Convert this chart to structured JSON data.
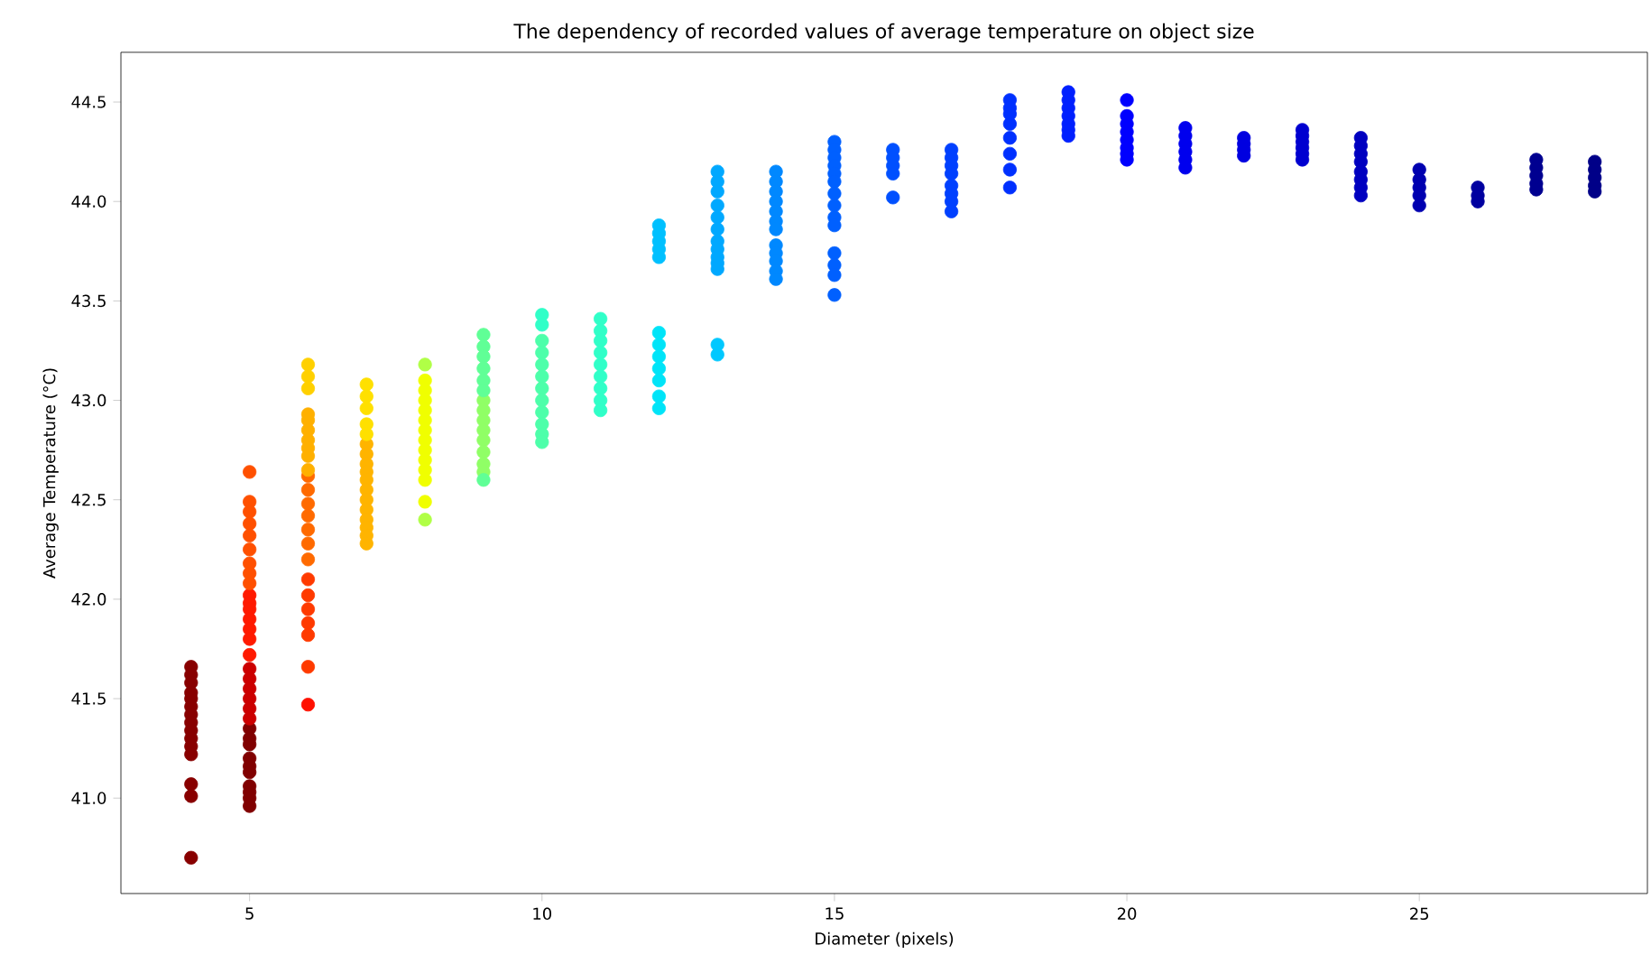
{
  "chart_data": {
    "type": "scatter",
    "title": "The dependency of recorded values of average temperature on object size",
    "xlabel": "Diameter (pixels)",
    "ylabel": "Average Temperature (°C)",
    "xlim": [
      2.8,
      28.9
    ],
    "ylim": [
      40.52,
      44.75
    ],
    "xticks": [
      5,
      10,
      15,
      20,
      25
    ],
    "yticks": [
      {
        "value": 41.0,
        "label": "41.0"
      },
      {
        "value": 41.5,
        "label": "41.5"
      },
      {
        "value": 42.0,
        "label": "42.0"
      },
      {
        "value": 42.5,
        "label": "42.5"
      },
      {
        "value": 43.0,
        "label": "43.0"
      },
      {
        "value": 43.5,
        "label": "43.5"
      },
      {
        "value": 44.0,
        "label": "44.0"
      },
      {
        "value": 44.5,
        "label": "44.5"
      }
    ],
    "grid": false,
    "marker": "circle",
    "series": [
      {
        "color": "#880000",
        "x": [
          4,
          4,
          4,
          4,
          4,
          4,
          4,
          4,
          4,
          4,
          4,
          4,
          4,
          4,
          4
        ],
        "values": [
          41.66,
          41.62,
          41.58,
          41.53,
          41.5,
          41.46,
          41.42,
          41.38,
          41.34,
          41.3,
          41.26,
          41.22,
          41.07,
          41.01,
          40.7
        ]
      },
      {
        "color": "#800000",
        "x": [
          5,
          5,
          5,
          5,
          5,
          5,
          5,
          5,
          5,
          5
        ],
        "values": [
          41.35,
          41.3,
          41.27,
          41.2,
          41.16,
          41.13,
          41.06,
          41.03,
          41.0,
          40.96
        ]
      },
      {
        "color": "#cc0000",
        "x": [
          5,
          5,
          5,
          5,
          5,
          5
        ],
        "values": [
          41.65,
          41.6,
          41.55,
          41.5,
          41.45,
          41.4
        ]
      },
      {
        "color": "#ff1a00",
        "x": [
          5,
          5,
          5,
          5,
          5,
          5,
          5
        ],
        "values": [
          42.02,
          41.98,
          41.95,
          41.9,
          41.85,
          41.8,
          41.72
        ]
      },
      {
        "color": "#ff5000",
        "x": [
          5,
          5,
          5,
          5,
          5,
          5,
          5,
          5,
          5
        ],
        "values": [
          42.64,
          42.49,
          42.44,
          42.38,
          42.32,
          42.25,
          42.18,
          42.13,
          42.08
        ]
      },
      {
        "color": "#ff1000",
        "x": [
          6
        ],
        "values": [
          41.47
        ]
      },
      {
        "color": "#ff3a00",
        "x": [
          6,
          6,
          6,
          6,
          6,
          6
        ],
        "values": [
          42.1,
          42.02,
          41.95,
          41.88,
          41.82,
          41.66
        ]
      },
      {
        "color": "#ff6a00",
        "x": [
          6,
          6,
          6,
          6,
          6,
          6,
          6
        ],
        "values": [
          42.62,
          42.55,
          42.48,
          42.42,
          42.35,
          42.28,
          42.2
        ]
      },
      {
        "color": "#ffb000",
        "x": [
          6,
          6,
          6,
          6,
          6,
          6,
          6
        ],
        "values": [
          42.93,
          42.9,
          42.85,
          42.8,
          42.76,
          42.72,
          42.65
        ]
      },
      {
        "color": "#ffd000",
        "x": [
          6,
          6,
          6
        ],
        "values": [
          43.18,
          43.12,
          43.06
        ]
      },
      {
        "color": "#ffb400",
        "x": [
          7,
          7,
          7,
          7,
          7,
          7,
          7,
          7,
          7,
          7,
          7,
          7
        ],
        "values": [
          42.78,
          42.73,
          42.68,
          42.64,
          42.6,
          42.55,
          42.5,
          42.45,
          42.4,
          42.36,
          42.32,
          42.28
        ]
      },
      {
        "color": "#ffe000",
        "x": [
          7,
          7,
          7,
          7,
          7
        ],
        "values": [
          43.08,
          43.02,
          42.96,
          42.88,
          42.83
        ]
      },
      {
        "color": "#f0ff00",
        "x": [
          8,
          8,
          8,
          8,
          8,
          8,
          8,
          8,
          8,
          8,
          8,
          8
        ],
        "values": [
          43.1,
          43.05,
          43.0,
          42.95,
          42.9,
          42.85,
          42.8,
          42.75,
          42.7,
          42.65,
          42.6,
          42.49
        ]
      },
      {
        "color": "#b0ff46",
        "x": [
          8,
          8
        ],
        "values": [
          43.18,
          42.4
        ]
      },
      {
        "color": "#90ff66",
        "x": [
          9,
          9,
          9,
          9,
          9,
          9,
          9,
          9
        ],
        "values": [
          43.0,
          42.95,
          42.9,
          42.85,
          42.8,
          42.74,
          42.68,
          42.64
        ]
      },
      {
        "color": "#60ff96",
        "x": [
          9,
          9,
          9,
          9,
          9,
          9,
          9
        ],
        "values": [
          43.33,
          43.27,
          43.22,
          43.16,
          43.1,
          43.05,
          42.6
        ]
      },
      {
        "color": "#4dffaa",
        "x": [
          10,
          10,
          10,
          10,
          10,
          10,
          10,
          10,
          10,
          10
        ],
        "values": [
          43.3,
          43.24,
          43.18,
          43.12,
          43.06,
          43.0,
          42.94,
          42.88,
          42.83,
          42.79
        ]
      },
      {
        "color": "#30ffc8",
        "x": [
          10,
          10
        ],
        "values": [
          43.43,
          43.38
        ]
      },
      {
        "color": "#30ffc8",
        "x": [
          11,
          11,
          11,
          11,
          11,
          11,
          11,
          11,
          11
        ],
        "values": [
          43.41,
          43.35,
          43.3,
          43.24,
          43.18,
          43.12,
          43.06,
          43.0,
          42.95
        ]
      },
      {
        "color": "#00e4f8",
        "x": [
          12,
          12,
          12,
          12,
          12,
          12,
          12
        ],
        "values": [
          43.34,
          43.28,
          43.22,
          43.16,
          43.1,
          43.02,
          42.96
        ]
      },
      {
        "color": "#00c0ff",
        "x": [
          12,
          12,
          12,
          12,
          12
        ],
        "values": [
          43.88,
          43.84,
          43.8,
          43.76,
          43.72
        ]
      },
      {
        "color": "#00c8ff",
        "x": [
          13,
          13
        ],
        "values": [
          43.28,
          43.23
        ]
      },
      {
        "color": "#00a8ff",
        "x": [
          13,
          13,
          13,
          13,
          13,
          13,
          13,
          13,
          13,
          13,
          13
        ],
        "values": [
          44.15,
          44.1,
          44.05,
          43.98,
          43.92,
          43.86,
          43.8,
          43.76,
          43.72,
          43.69,
          43.66
        ]
      },
      {
        "color": "#0088ff",
        "x": [
          14,
          14,
          14,
          14,
          14,
          14,
          14,
          14,
          14,
          14,
          14,
          14
        ],
        "values": [
          44.15,
          44.1,
          44.05,
          44.0,
          43.95,
          43.9,
          43.86,
          43.78,
          43.74,
          43.7,
          43.65,
          43.61
        ]
      },
      {
        "color": "#0060ff",
        "x": [
          15,
          15,
          15,
          15,
          15,
          15,
          15,
          15,
          15,
          15,
          15,
          15,
          15,
          15
        ],
        "values": [
          44.3,
          44.26,
          44.22,
          44.18,
          44.14,
          44.1,
          44.04,
          43.98,
          43.92,
          43.88,
          43.74,
          43.68,
          43.63,
          43.53
        ]
      },
      {
        "color": "#0050ff",
        "x": [
          16,
          16,
          16,
          16,
          16
        ],
        "values": [
          44.26,
          44.22,
          44.18,
          44.14,
          44.02
        ]
      },
      {
        "color": "#0040ff",
        "x": [
          17,
          17,
          17,
          17,
          17,
          17,
          17,
          17
        ],
        "values": [
          44.26,
          44.22,
          44.18,
          44.14,
          44.08,
          44.04,
          44.0,
          43.95
        ]
      },
      {
        "color": "#0030ff",
        "x": [
          18,
          18,
          18,
          18,
          18,
          18,
          18,
          18
        ],
        "values": [
          44.51,
          44.47,
          44.39,
          44.32,
          44.24,
          44.16,
          44.07,
          44.44
        ]
      },
      {
        "color": "#0020ff",
        "x": [
          19,
          19,
          19,
          19,
          19,
          19,
          19
        ],
        "values": [
          44.55,
          44.51,
          44.47,
          44.43,
          44.39,
          44.36,
          44.33
        ]
      },
      {
        "color": "#0000ff",
        "x": [
          20,
          20,
          20,
          20,
          20,
          20,
          20,
          20
        ],
        "values": [
          44.51,
          44.43,
          44.39,
          44.35,
          44.31,
          44.27,
          44.24,
          44.21
        ]
      },
      {
        "color": "#0000ee",
        "x": [
          21,
          21,
          21,
          21,
          21,
          21
        ],
        "values": [
          44.37,
          44.33,
          44.29,
          44.25,
          44.21,
          44.17
        ]
      },
      {
        "color": "#0000e0",
        "x": [
          22,
          22,
          22,
          22
        ],
        "values": [
          44.32,
          44.29,
          44.26,
          44.23
        ]
      },
      {
        "color": "#0000d0",
        "x": [
          23,
          23,
          23,
          23,
          23,
          23
        ],
        "values": [
          44.36,
          44.33,
          44.3,
          44.27,
          44.24,
          44.21
        ]
      },
      {
        "color": "#0000c0",
        "x": [
          24,
          24,
          24,
          24,
          24,
          24,
          24,
          24
        ],
        "values": [
          44.32,
          44.28,
          44.24,
          44.2,
          44.15,
          44.11,
          44.07,
          44.03
        ]
      },
      {
        "color": "#0000b0",
        "x": [
          25,
          25,
          25,
          25,
          25
        ],
        "values": [
          44.16,
          44.11,
          44.07,
          44.03,
          43.98
        ]
      },
      {
        "color": "#0000a0",
        "x": [
          26,
          26,
          26
        ],
        "values": [
          44.07,
          44.03,
          44.0
        ]
      },
      {
        "color": "#000090",
        "x": [
          27,
          27,
          27,
          27,
          27
        ],
        "values": [
          44.21,
          44.17,
          44.13,
          44.09,
          44.06
        ]
      },
      {
        "color": "#000088",
        "x": [
          28,
          28,
          28,
          28,
          28
        ],
        "values": [
          44.2,
          44.16,
          44.12,
          44.08,
          44.05
        ]
      }
    ]
  }
}
